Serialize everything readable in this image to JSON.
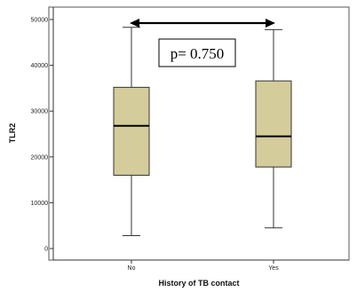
{
  "chart_data": {
    "type": "box",
    "xlabel": "History of TB contact",
    "ylabel": "TLR2",
    "ylim": [
      -2000,
      52000
    ],
    "yticks": [
      0,
      10000,
      20000,
      30000,
      40000,
      50000
    ],
    "ytick_labels": [
      "0",
      "10000",
      "20000",
      "30000",
      "40000",
      "50000"
    ],
    "categories": [
      "No",
      "Yes"
    ],
    "boxes": [
      {
        "category": "No",
        "min": 2800,
        "q1": 16000,
        "median": 26800,
        "q3": 35200,
        "max": 48300
      },
      {
        "category": "Yes",
        "min": 4500,
        "q1": 17800,
        "median": 24500,
        "q3": 36600,
        "max": 47800
      }
    ],
    "box_fill": "#d4cc9a",
    "box_stroke": "#333333",
    "annotation": {
      "text": "p= 0.750",
      "arrow": "double-headed",
      "between": [
        "No",
        "Yes"
      ]
    }
  }
}
